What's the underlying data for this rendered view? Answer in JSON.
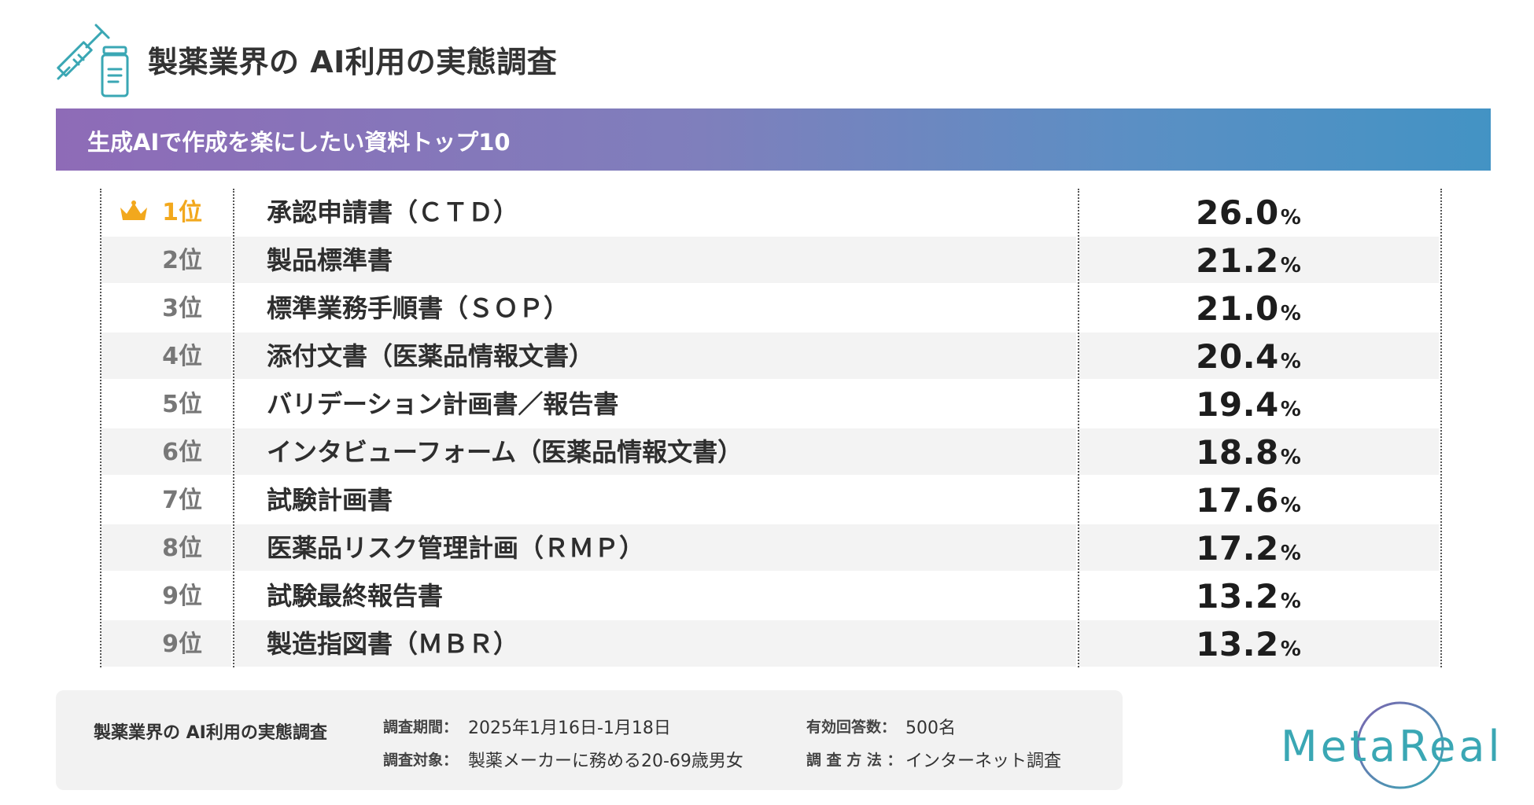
{
  "header": {
    "title": "製薬業界の AI利用の実態調査",
    "icon": "syringe-vial-icon",
    "icon_color": "#3aa7b4"
  },
  "banner": {
    "title": "生成AIで作成を楽にしたい資料トップ10",
    "gradient_start": "#8e6bb7",
    "gradient_end": "#4393c4"
  },
  "chart_data": {
    "type": "table",
    "title": "生成AIで作成を楽にしたい資料トップ10",
    "unit": "%",
    "rows": [
      {
        "rank": "1位",
        "item": "承認申請書（ＣＴＤ）",
        "value": "26.0"
      },
      {
        "rank": "2位",
        "item": "製品標準書",
        "value": "21.2"
      },
      {
        "rank": "3位",
        "item": "標準業務手順書（ＳＯＰ）",
        "value": "21.0"
      },
      {
        "rank": "4位",
        "item": "添付文書（医薬品情報文書）",
        "value": "20.4"
      },
      {
        "rank": "5位",
        "item": "バリデーション計画書／報告書",
        "value": "19.4"
      },
      {
        "rank": "6位",
        "item": "インタビューフォーム（医薬品情報文書）",
        "value": "18.8"
      },
      {
        "rank": "7位",
        "item": "試験計画書",
        "value": "17.6"
      },
      {
        "rank": "8位",
        "item": "医薬品リスク管理計画（ＲＭＰ）",
        "value": "17.2"
      },
      {
        "rank": "9位",
        "item": "試験最終報告書",
        "value": "13.2"
      },
      {
        "rank": "9位",
        "item": "製造指図書（ＭＢＲ）",
        "value": "13.2"
      }
    ],
    "first_rank_color": "#f2a81d",
    "first_rank_icon": "crown-icon"
  },
  "footer": {
    "survey_name": "製薬業界の AI利用の実態調査",
    "period_label": "調査期間：",
    "period_value": "2025年1月16日-1月18日",
    "target_label": "調査対象：",
    "target_value": "製薬メーカーに務める20-69歳男女",
    "responses_label": "有効回答数：",
    "responses_value": "500名",
    "method_label": "調 査 方 法 ：",
    "method_value": "インターネット調査"
  },
  "logo": {
    "text": "MetaReal",
    "color": "#3aa7b4",
    "ring_color": "#7b64b0"
  }
}
